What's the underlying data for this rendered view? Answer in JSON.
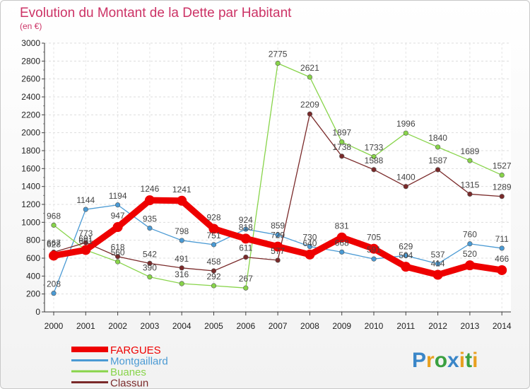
{
  "chart_data": {
    "type": "line",
    "title": "Evolution du Montant de la Dette par Habitant",
    "subtitle": "(en €)",
    "xlabel": "",
    "ylabel": "",
    "ylim": [
      0,
      3000
    ],
    "yticks": [
      0,
      200,
      400,
      600,
      800,
      1000,
      1200,
      1400,
      1600,
      1800,
      2000,
      2200,
      2400,
      2600,
      2800,
      3000
    ],
    "grid": true,
    "legend_position": "bottom-left",
    "categories": [
      "2000",
      "2001",
      "2002",
      "2003",
      "2004",
      "2005",
      "2006",
      "2007",
      "2008",
      "2009",
      "2010",
      "2011",
      "2012",
      "2013",
      "2014"
    ],
    "series": [
      {
        "name": "FARGUES",
        "color": "#ee0000",
        "values": [
          628,
          691,
          947,
          1246,
          1241,
          928,
          818,
          729,
          640,
          831,
          705,
          504,
          414,
          520,
          466
        ]
      },
      {
        "name": "Montgaillard",
        "color": "#4a9ad4",
        "values": [
          208,
          1144,
          1194,
          935,
          798,
          751,
          924,
          859,
          730,
          668,
          591,
          629,
          537,
          760,
          711
        ]
      },
      {
        "name": "Buanes",
        "color": "#88d44a",
        "values": [
          968,
          691,
          560,
          390,
          316,
          292,
          267,
          2775,
          2621,
          1897,
          1733,
          1996,
          1840,
          1689,
          1527
        ]
      },
      {
        "name": "Classun",
        "color": "#7a2a2a",
        "values": [
          667,
          773,
          618,
          542,
          491,
          458,
          611,
          577,
          2209,
          1738,
          1588,
          1400,
          1587,
          1315,
          1289
        ]
      }
    ]
  },
  "logo": {
    "text": "Proxiti"
  }
}
